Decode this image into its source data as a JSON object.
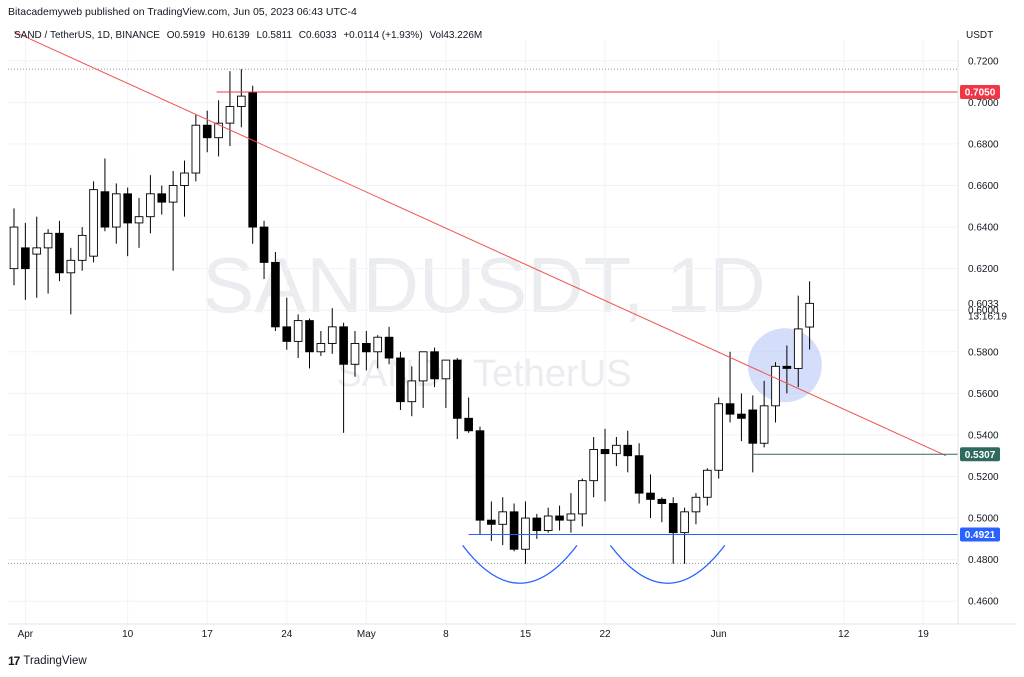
{
  "header": {
    "published": "Bitacademyweb published on TradingView.com, Jun 05, 2023 06:43 UTC-4",
    "symbol": "SAND / TetherUS, 1D, BINANCE",
    "o_label": "O",
    "o_value": "0.5919",
    "h_label": "H",
    "h_value": "0.6139",
    "l_label": "L",
    "l_value": "0.5811",
    "c_label": "C",
    "c_value": "0.6033",
    "change": "+0.0114 (+1.93%)",
    "vol_label": "Vol",
    "vol_value": "43.226M",
    "currency": "USDT"
  },
  "watermark": {
    "line1": "SANDUSDT, 1D",
    "line2": "SAND / TetherUS"
  },
  "footer": {
    "logo": "17",
    "brand": "TradingView"
  },
  "colors": {
    "candle_up_fill": "#ffffff",
    "candle_down_fill": "#000000",
    "candle_border": "#000000",
    "trendline": "#f05350",
    "resistance_line": "#f05350",
    "support_line_1": "#2962ff",
    "support_line_2": "#2e6b5e",
    "highlight_circle": "#b8c6f5",
    "arc": "#2962ff",
    "label_red": "#f23645",
    "label_blue": "#2962ff",
    "label_green": "#2e6b5e"
  },
  "chart_data": {
    "type": "candlestick",
    "y_axis": {
      "ticks": [
        "0.7200",
        "0.7000",
        "0.6800",
        "0.6600",
        "0.6400",
        "0.6200",
        "0.6000",
        "0.5800",
        "0.5600",
        "0.5400",
        "0.5200",
        "0.5000",
        "0.4800",
        "0.4600"
      ],
      "ylim": [
        0.45,
        0.73
      ]
    },
    "x_axis": {
      "ticks": [
        {
          "label": "Apr",
          "date": "2023-04-01"
        },
        {
          "label": "10",
          "date": "2023-04-10"
        },
        {
          "label": "17",
          "date": "2023-04-17"
        },
        {
          "label": "24",
          "date": "2023-04-24"
        },
        {
          "label": "May",
          "date": "2023-05-01"
        },
        {
          "label": "8",
          "date": "2023-05-08"
        },
        {
          "label": "15",
          "date": "2023-05-15"
        },
        {
          "label": "22",
          "date": "2023-05-22"
        },
        {
          "label": "Jun",
          "date": "2023-06-01"
        },
        {
          "label": "12",
          "date": "2023-06-12"
        },
        {
          "label": "19",
          "date": "2023-06-19"
        }
      ],
      "range": [
        "2023-03-31",
        "2023-06-21"
      ]
    },
    "candles": [
      {
        "date": "2023-03-31",
        "o": 0.62,
        "h": 0.649,
        "l": 0.612,
        "c": 0.64
      },
      {
        "date": "2023-04-01",
        "o": 0.63,
        "h": 0.642,
        "l": 0.605,
        "c": 0.62
      },
      {
        "date": "2023-04-02",
        "o": 0.627,
        "h": 0.645,
        "l": 0.606,
        "c": 0.63
      },
      {
        "date": "2023-04-03",
        "o": 0.63,
        "h": 0.639,
        "l": 0.608,
        "c": 0.637
      },
      {
        "date": "2023-04-04",
        "o": 0.637,
        "h": 0.643,
        "l": 0.614,
        "c": 0.618
      },
      {
        "date": "2023-04-05",
        "o": 0.618,
        "h": 0.63,
        "l": 0.598,
        "c": 0.624
      },
      {
        "date": "2023-04-06",
        "o": 0.624,
        "h": 0.64,
        "l": 0.619,
        "c": 0.636
      },
      {
        "date": "2023-04-07",
        "o": 0.626,
        "h": 0.662,
        "l": 0.623,
        "c": 0.658
      },
      {
        "date": "2023-04-08",
        "o": 0.657,
        "h": 0.673,
        "l": 0.638,
        "c": 0.64
      },
      {
        "date": "2023-04-09",
        "o": 0.64,
        "h": 0.661,
        "l": 0.632,
        "c": 0.656
      },
      {
        "date": "2023-04-10",
        "o": 0.656,
        "h": 0.659,
        "l": 0.626,
        "c": 0.642
      },
      {
        "date": "2023-04-11",
        "o": 0.642,
        "h": 0.654,
        "l": 0.63,
        "c": 0.645
      },
      {
        "date": "2023-04-12",
        "o": 0.645,
        "h": 0.665,
        "l": 0.637,
        "c": 0.656
      },
      {
        "date": "2023-04-13",
        "o": 0.656,
        "h": 0.66,
        "l": 0.646,
        "c": 0.652
      },
      {
        "date": "2023-04-14",
        "o": 0.652,
        "h": 0.667,
        "l": 0.619,
        "c": 0.66
      },
      {
        "date": "2023-04-15",
        "o": 0.66,
        "h": 0.672,
        "l": 0.645,
        "c": 0.666
      },
      {
        "date": "2023-04-16",
        "o": 0.666,
        "h": 0.694,
        "l": 0.662,
        "c": 0.689
      },
      {
        "date": "2023-04-17",
        "o": 0.689,
        "h": 0.696,
        "l": 0.676,
        "c": 0.683
      },
      {
        "date": "2023-04-18",
        "o": 0.683,
        "h": 0.701,
        "l": 0.674,
        "c": 0.69
      },
      {
        "date": "2023-04-19",
        "o": 0.69,
        "h": 0.715,
        "l": 0.679,
        "c": 0.698
      },
      {
        "date": "2023-04-20",
        "o": 0.698,
        "h": 0.716,
        "l": 0.688,
        "c": 0.703
      },
      {
        "date": "2023-04-21",
        "o": 0.705,
        "h": 0.708,
        "l": 0.632,
        "c": 0.64
      },
      {
        "date": "2023-04-22",
        "o": 0.64,
        "h": 0.643,
        "l": 0.615,
        "c": 0.623
      },
      {
        "date": "2023-04-23",
        "o": 0.623,
        "h": 0.628,
        "l": 0.59,
        "c": 0.592
      },
      {
        "date": "2023-04-24",
        "o": 0.592,
        "h": 0.606,
        "l": 0.581,
        "c": 0.585
      },
      {
        "date": "2023-04-25",
        "o": 0.585,
        "h": 0.598,
        "l": 0.577,
        "c": 0.595
      },
      {
        "date": "2023-04-26",
        "o": 0.595,
        "h": 0.596,
        "l": 0.572,
        "c": 0.58
      },
      {
        "date": "2023-04-27",
        "o": 0.58,
        "h": 0.59,
        "l": 0.578,
        "c": 0.584
      },
      {
        "date": "2023-04-28",
        "o": 0.584,
        "h": 0.601,
        "l": 0.579,
        "c": 0.592
      },
      {
        "date": "2023-04-29",
        "o": 0.592,
        "h": 0.594,
        "l": 0.541,
        "c": 0.574
      },
      {
        "date": "2023-04-30",
        "o": 0.574,
        "h": 0.59,
        "l": 0.568,
        "c": 0.584
      },
      {
        "date": "2023-05-01",
        "o": 0.584,
        "h": 0.59,
        "l": 0.571,
        "c": 0.58
      },
      {
        "date": "2023-05-02",
        "o": 0.58,
        "h": 0.588,
        "l": 0.572,
        "c": 0.587
      },
      {
        "date": "2023-05-03",
        "o": 0.587,
        "h": 0.592,
        "l": 0.574,
        "c": 0.577
      },
      {
        "date": "2023-05-04",
        "o": 0.577,
        "h": 0.58,
        "l": 0.552,
        "c": 0.556
      },
      {
        "date": "2023-05-05",
        "o": 0.556,
        "h": 0.573,
        "l": 0.549,
        "c": 0.566
      },
      {
        "date": "2023-05-06",
        "o": 0.566,
        "h": 0.58,
        "l": 0.553,
        "c": 0.58
      },
      {
        "date": "2023-05-07",
        "o": 0.58,
        "h": 0.582,
        "l": 0.563,
        "c": 0.567
      },
      {
        "date": "2023-05-08",
        "o": 0.567,
        "h": 0.576,
        "l": 0.553,
        "c": 0.576
      },
      {
        "date": "2023-05-09",
        "o": 0.576,
        "h": 0.577,
        "l": 0.538,
        "c": 0.548
      },
      {
        "date": "2023-05-10",
        "o": 0.548,
        "h": 0.558,
        "l": 0.541,
        "c": 0.542
      },
      {
        "date": "2023-05-11",
        "o": 0.542,
        "h": 0.544,
        "l": 0.492,
        "c": 0.499
      },
      {
        "date": "2023-05-12",
        "o": 0.499,
        "h": 0.508,
        "l": 0.489,
        "c": 0.497
      },
      {
        "date": "2023-05-13",
        "o": 0.497,
        "h": 0.51,
        "l": 0.487,
        "c": 0.503
      },
      {
        "date": "2023-05-14",
        "o": 0.503,
        "h": 0.507,
        "l": 0.484,
        "c": 0.485
      },
      {
        "date": "2023-05-15",
        "o": 0.485,
        "h": 0.508,
        "l": 0.478,
        "c": 0.5
      },
      {
        "date": "2023-05-16",
        "o": 0.5,
        "h": 0.502,
        "l": 0.49,
        "c": 0.494
      },
      {
        "date": "2023-05-17",
        "o": 0.494,
        "h": 0.505,
        "l": 0.493,
        "c": 0.501
      },
      {
        "date": "2023-05-18",
        "o": 0.501,
        "h": 0.506,
        "l": 0.494,
        "c": 0.499
      },
      {
        "date": "2023-05-19",
        "o": 0.499,
        "h": 0.512,
        "l": 0.493,
        "c": 0.502
      },
      {
        "date": "2023-05-20",
        "o": 0.502,
        "h": 0.519,
        "l": 0.496,
        "c": 0.518
      },
      {
        "date": "2023-05-21",
        "o": 0.518,
        "h": 0.539,
        "l": 0.51,
        "c": 0.533
      },
      {
        "date": "2023-05-22",
        "o": 0.533,
        "h": 0.543,
        "l": 0.508,
        "c": 0.531
      },
      {
        "date": "2023-05-23",
        "o": 0.531,
        "h": 0.539,
        "l": 0.525,
        "c": 0.535
      },
      {
        "date": "2023-05-24",
        "o": 0.535,
        "h": 0.542,
        "l": 0.522,
        "c": 0.53
      },
      {
        "date": "2023-05-25",
        "o": 0.53,
        "h": 0.536,
        "l": 0.507,
        "c": 0.512
      },
      {
        "date": "2023-05-26",
        "o": 0.512,
        "h": 0.521,
        "l": 0.5,
        "c": 0.509
      },
      {
        "date": "2023-05-27",
        "o": 0.509,
        "h": 0.51,
        "l": 0.498,
        "c": 0.507
      },
      {
        "date": "2023-05-28",
        "o": 0.507,
        "h": 0.51,
        "l": 0.478,
        "c": 0.493
      },
      {
        "date": "2023-05-29",
        "o": 0.493,
        "h": 0.505,
        "l": 0.478,
        "c": 0.503
      },
      {
        "date": "2023-05-30",
        "o": 0.503,
        "h": 0.512,
        "l": 0.497,
        "c": 0.51
      },
      {
        "date": "2023-05-31",
        "o": 0.51,
        "h": 0.524,
        "l": 0.506,
        "c": 0.523
      },
      {
        "date": "2023-06-01",
        "o": 0.523,
        "h": 0.558,
        "l": 0.519,
        "c": 0.555
      },
      {
        "date": "2023-06-02",
        "o": 0.555,
        "h": 0.58,
        "l": 0.546,
        "c": 0.55
      },
      {
        "date": "2023-06-03",
        "o": 0.55,
        "h": 0.56,
        "l": 0.537,
        "c": 0.548
      },
      {
        "date": "2023-06-04",
        "o": 0.552,
        "h": 0.559,
        "l": 0.522,
        "c": 0.536
      },
      {
        "date": "2023-06-05",
        "o": 0.536,
        "h": 0.566,
        "l": 0.534,
        "c": 0.554
      },
      {
        "date": "2023-06-06",
        "o": 0.554,
        "h": 0.575,
        "l": 0.546,
        "c": 0.573
      },
      {
        "date": "2023-06-07",
        "o": 0.573,
        "h": 0.583,
        "l": 0.56,
        "c": 0.572
      },
      {
        "date": "2023-06-08",
        "o": 0.572,
        "h": 0.607,
        "l": 0.563,
        "c": 0.591
      },
      {
        "date": "2023-06-09",
        "o": 0.5919,
        "h": 0.6139,
        "l": 0.5811,
        "c": 0.6033
      }
    ],
    "annotations": {
      "trendline": {
        "from": {
          "date": "2023-03-31",
          "price": 0.734
        },
        "to": {
          "date": "2023-06-21",
          "price": 0.53
        }
      },
      "resistance": {
        "price": 0.705,
        "from_date": "2023-04-18",
        "label": "0.7050"
      },
      "support_high": {
        "price": 0.5307,
        "from_date": "2023-06-04",
        "label": "0.5307"
      },
      "support_low": {
        "price": 0.4921,
        "from_date": "2023-05-10",
        "label": "0.4921"
      },
      "dotted_levels": [
        0.716,
        0.4782
      ],
      "current_price": {
        "value": "0.6033",
        "countdown": "13:16:19"
      },
      "breakout_circle": {
        "date": "2023-06-07",
        "price": 0.5735
      },
      "bottom_arcs": [
        {
          "from_date": "2023-05-10",
          "to_date": "2023-05-19"
        },
        {
          "from_date": "2023-05-23",
          "to_date": "2023-06-01"
        }
      ]
    }
  }
}
